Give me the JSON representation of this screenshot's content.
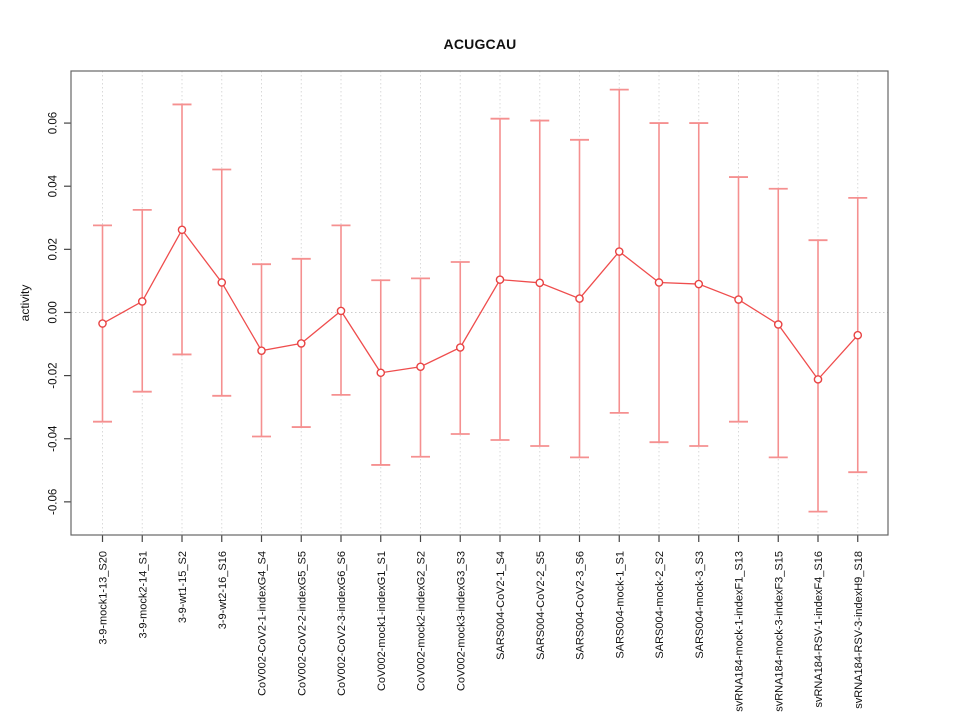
{
  "chart_data": {
    "type": "line",
    "subtype": "means-with-error-bars",
    "title": "ACUGCAU",
    "xlabel": "",
    "ylabel": "activity",
    "ylim": [
      -0.0705,
      0.0765
    ],
    "yticks": [
      -0.06,
      -0.04,
      -0.02,
      0.0,
      0.02,
      0.04,
      0.06
    ],
    "ytick_labels": [
      "-0.06",
      "-0.04",
      "-0.02",
      "0.00",
      "0.02",
      "0.04",
      "0.06"
    ],
    "grid": "vertical dotted gridline at every category; dotted horizontal line at y=0; full box frame",
    "legend": "none",
    "marker": "open-circle",
    "x_tick_label_rotation_deg": -90,
    "categories": [
      "3-9-mock1-13_S20",
      "3-9-mock2-14_S1",
      "3-9-wt1-15_S2",
      "3-9-wt2-16_S16",
      "CoV002-CoV2-1-indexG4_S4",
      "CoV002-CoV2-2-indexG5_S5",
      "CoV002-CoV2-3-indexG6_S6",
      "CoV002-mock1-indexG1_S1",
      "CoV002-mock2-indexG2_S2",
      "CoV002-mock3-indexG3_S3",
      "SARS004-CoV2-1_S4",
      "SARS004-CoV2-2_S5",
      "SARS004-CoV2-3_S6",
      "SARS004-mock-1_S1",
      "SARS004-mock-2_S2",
      "SARS004-mock-3_S3",
      "svRNA184-mock-1-indexF1_S13",
      "svRNA184-mock-3-indexF3_S15",
      "svRNA184-RSV-1-indexF4_S16",
      "svRNA184-RSV-3-indexH9_S18"
    ],
    "series": [
      {
        "name": "activity",
        "values": [
          -0.0035,
          0.0035,
          0.0262,
          0.0095,
          -0.0121,
          -0.0098,
          0.0005,
          -0.0191,
          -0.0172,
          -0.0111,
          0.0104,
          0.0094,
          0.0044,
          0.0193,
          0.0095,
          0.009,
          0.0041,
          -0.0038,
          -0.0212,
          -0.0072
        ],
        "ci_low": [
          -0.0346,
          -0.0251,
          -0.0133,
          -0.0264,
          -0.0393,
          -0.0363,
          -0.0261,
          -0.0483,
          -0.0457,
          -0.0385,
          -0.0404,
          -0.0423,
          -0.0459,
          -0.0318,
          -0.0411,
          -0.0423,
          -0.0346,
          -0.0459,
          -0.0631,
          -0.0506
        ],
        "ci_high": [
          0.0276,
          0.0325,
          0.0659,
          0.0453,
          0.0153,
          0.017,
          0.0276,
          0.0102,
          0.0108,
          0.016,
          0.0614,
          0.0608,
          0.0547,
          0.0706,
          0.06,
          0.06,
          0.0429,
          0.0392,
          0.0229,
          0.0363
        ]
      }
    ],
    "colors": {
      "point": "#e84343",
      "line": "#ef4d4d",
      "error_bar": "#f59090",
      "gridline": "#d9d9d9",
      "zero_line": "#cccccc",
      "frame": "#666666",
      "tick": "#444444",
      "text": "#111111",
      "background": "#ffffff"
    }
  }
}
